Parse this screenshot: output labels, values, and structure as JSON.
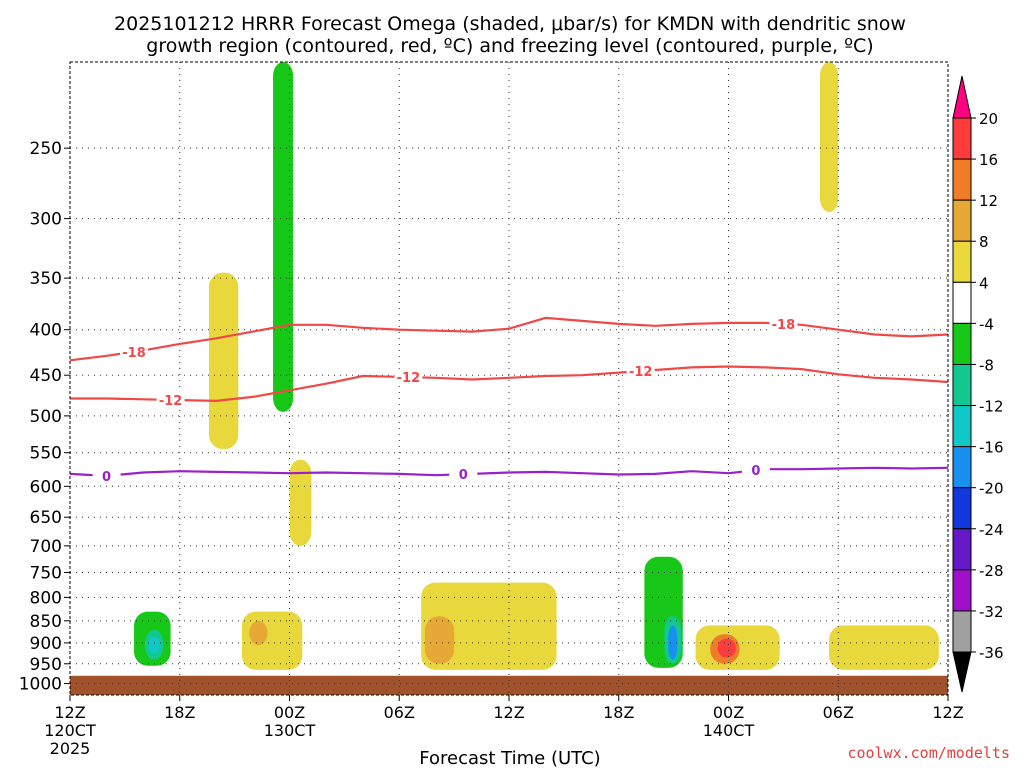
{
  "title": {
    "line1": "2025101212 HRRR Forecast Omega (shaded, μbar/s) for KMDN with dendritic snow",
    "line2": "growth region (contoured, red, ºC) and freezing level (contoured, purple, ºC)"
  },
  "watermark": "coolwx.com/modelts",
  "chart_data": {
    "type": "heatmap",
    "xlabel": "Forecast Time (UTC)",
    "x_start": "2025-10-12 12Z",
    "x_end": "2025-10-14 12Z",
    "x_ticks": [
      {
        "hour": 0,
        "label": "12Z",
        "sub": [
          "120CT",
          "2025"
        ]
      },
      {
        "hour": 6,
        "label": "18Z",
        "sub": []
      },
      {
        "hour": 12,
        "label": "00Z",
        "sub": [
          "130CT"
        ]
      },
      {
        "hour": 18,
        "label": "06Z",
        "sub": []
      },
      {
        "hour": 24,
        "label": "12Z",
        "sub": []
      },
      {
        "hour": 30,
        "label": "18Z",
        "sub": []
      },
      {
        "hour": 36,
        "label": "00Z",
        "sub": [
          "140CT"
        ]
      },
      {
        "hour": 42,
        "label": "06Z",
        "sub": []
      },
      {
        "hour": 48,
        "label": "12Z",
        "sub": []
      }
    ],
    "y_axis": {
      "unit": "hPa",
      "scale": "log",
      "range": [
        1030,
        200
      ],
      "ticks": [
        250,
        300,
        350,
        400,
        450,
        500,
        550,
        600,
        650,
        700,
        750,
        800,
        850,
        900,
        950,
        1000
      ]
    },
    "grid": true,
    "colorbar": {
      "unit": "μbar/s",
      "boundaries": [
        20,
        16,
        12,
        8,
        4,
        -4,
        -8,
        -12,
        -16,
        -20,
        -24,
        -28,
        -32,
        -36
      ],
      "colors": [
        "#ff0080",
        "#ff3c3c",
        "#f07c28",
        "#e8a835",
        "#e8d83c",
        "#ffffff",
        "#18c818",
        "#10c890",
        "#10c8c8",
        "#1890f0",
        "#1438e0",
        "#6418c8",
        "#a010c8",
        "#a0a0a0",
        "#000000"
      ]
    },
    "omega_regions": [
      {
        "class": "ascent_4_8",
        "value": "-4 to -8",
        "color": "#18c818",
        "hours": [
          11.1,
          12.2
        ],
        "hPa": [
          200,
          495
        ]
      },
      {
        "class": "ascent_4_8",
        "value": "-4 to -8",
        "color": "#18c818",
        "hours": [
          3.5,
          5.5
        ],
        "hPa": [
          830,
          955
        ]
      },
      {
        "class": "ascent_8_12",
        "value": "-8 to -12",
        "color": "#10c890",
        "hours": [
          4.1,
          5.1
        ],
        "hPa": [
          870,
          940
        ]
      },
      {
        "class": "ascent_12_16",
        "value": "-12 to -16",
        "color": "#10c8c8",
        "hours": [
          4.3,
          4.9
        ],
        "hPa": [
          885,
          925
        ]
      },
      {
        "class": "ascent_4_8",
        "value": "-4 to -8",
        "color": "#18c818",
        "hours": [
          31.4,
          33.5
        ],
        "hPa": [
          720,
          960
        ]
      },
      {
        "class": "ascent_8_12",
        "value": "-8 to -12",
        "color": "#10c890",
        "hours": [
          32.5,
          33.4
        ],
        "hPa": [
          840,
          950
        ]
      },
      {
        "class": "ascent_16_20",
        "value": "-16 to -20",
        "color": "#1890f0",
        "hours": [
          32.7,
          33.2
        ],
        "hPa": [
          860,
          940
        ]
      },
      {
        "class": "descent_4_8",
        "value": "4 to 8",
        "color": "#e8d83c",
        "hours": [
          7.6,
          9.2
        ],
        "hPa": [
          345,
          545
        ]
      },
      {
        "class": "descent_4_8",
        "value": "4 to 8",
        "color": "#e8d83c",
        "hours": [
          9.4,
          12.7
        ],
        "hPa": [
          830,
          965
        ]
      },
      {
        "class": "descent_8_12",
        "value": "8 to 12",
        "color": "#e8a835",
        "hours": [
          9.8,
          10.8
        ],
        "hPa": [
          850,
          905
        ]
      },
      {
        "class": "descent_4_8",
        "value": "4 to 8",
        "color": "#e8d83c",
        "hours": [
          19.2,
          26.6
        ],
        "hPa": [
          770,
          965
        ]
      },
      {
        "class": "descent_8_12",
        "value": "8 to 12",
        "color": "#e8a835",
        "hours": [
          19.4,
          21.0
        ],
        "hPa": [
          840,
          950
        ]
      },
      {
        "class": "descent_4_8",
        "value": "4 to 8",
        "color": "#e8d83c",
        "hours": [
          34.2,
          38.8
        ],
        "hPa": [
          860,
          965
        ]
      },
      {
        "class": "descent_12_16",
        "value": "12 to 16",
        "color": "#f07c28",
        "hours": [
          35.0,
          36.6
        ],
        "hPa": [
          880,
          950
        ]
      },
      {
        "class": "descent_16_20",
        "value": "16 to 20",
        "color": "#ff3c3c",
        "hours": [
          35.4,
          36.4
        ],
        "hPa": [
          890,
          935
        ]
      },
      {
        "class": "descent_4_8",
        "value": "4 to 8",
        "color": "#e8d83c",
        "hours": [
          41.0,
          42.0
        ],
        "hPa": [
          200,
          295
        ]
      },
      {
        "class": "descent_4_8",
        "value": "4 to 8",
        "color": "#e8d83c",
        "hours": [
          41.5,
          47.5
        ],
        "hPa": [
          860,
          965
        ]
      },
      {
        "class": "descent_4_8",
        "value": "4 to 8",
        "color": "#e8d83c",
        "hours": [
          12.0,
          13.2
        ],
        "hPa": [
          560,
          700
        ]
      }
    ],
    "contours": [
      {
        "name": "-18 °C isotherm",
        "label": "-18",
        "color": "#f04848",
        "x": [
          0,
          2,
          4,
          6,
          8,
          10,
          12,
          14,
          16,
          18,
          20,
          22,
          24,
          26,
          28,
          30,
          32,
          34,
          36,
          38,
          40,
          42,
          44,
          46,
          48
        ],
        "hPa": [
          433,
          428,
          422,
          415,
          409,
          402,
          395,
          395,
          398,
          400,
          401,
          402,
          399,
          388,
          391,
          394,
          396,
          394,
          393,
          393,
          395,
          400,
          405,
          407,
          405
        ],
        "label_hours": [
          3.5,
          39.0
        ]
      },
      {
        "name": "-12 °C isotherm",
        "label": "-12",
        "color": "#f04848",
        "x": [
          0,
          2,
          4,
          6,
          8,
          10,
          12,
          14,
          16,
          18,
          20,
          22,
          24,
          26,
          28,
          30,
          32,
          34,
          36,
          38,
          40,
          42,
          44,
          46,
          48
        ],
        "hPa": [
          478,
          478,
          479,
          480,
          481,
          476,
          468,
          460,
          451,
          452,
          453,
          455,
          453,
          451,
          450,
          447,
          444,
          441,
          440,
          441,
          443,
          449,
          453,
          455,
          458
        ],
        "label_hours": [
          5.5,
          18.5,
          31.2
        ]
      },
      {
        "name": "0 °C freezing level",
        "label": "0",
        "color": "#9c20c8",
        "x": [
          0,
          2,
          4,
          6,
          8,
          10,
          12,
          14,
          16,
          18,
          20,
          22,
          24,
          26,
          28,
          30,
          32,
          34,
          36,
          38,
          40,
          42,
          44,
          46,
          48
        ],
        "hPa": [
          581,
          584,
          579,
          577,
          578,
          579,
          580,
          579,
          580,
          581,
          583,
          581,
          579,
          578,
          580,
          582,
          581,
          577,
          580,
          574,
          574,
          573,
          572,
          573,
          572
        ],
        "label_hours": [
          2.0,
          21.5,
          37.5
        ]
      }
    ],
    "ground": {
      "color": "#a0522d",
      "hPa_top": 980
    }
  }
}
